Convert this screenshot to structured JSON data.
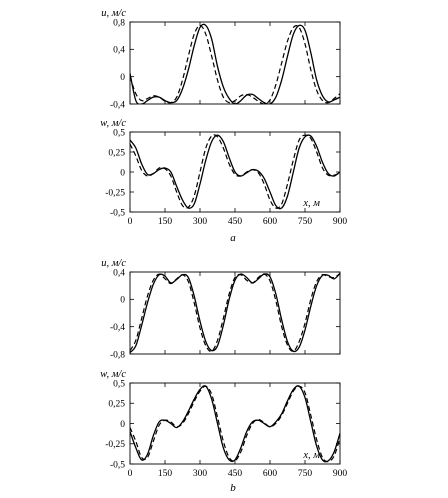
{
  "chart_data": [
    {
      "type": "line",
      "group": "a",
      "ylabel": "u, м/с",
      "xlabel": "",
      "xlim": [
        0,
        900
      ],
      "ylim": [
        -0.4,
        0.8
      ],
      "yticks": [
        "0,8",
        "0,4",
        "0",
        "-0,4"
      ],
      "ytick_values": [
        0.8,
        0.4,
        0,
        -0.4
      ],
      "xticks_shown": false,
      "series": [
        {
          "style": "solid",
          "x": [
            0,
            25,
            50,
            75,
            100,
            125,
            150,
            175,
            200,
            225,
            250,
            275,
            300,
            325,
            350,
            375,
            400,
            425,
            450,
            475,
            500,
            525,
            550,
            575,
            600,
            625,
            650,
            675,
            700,
            725,
            750,
            775,
            800,
            825,
            850,
            875,
            900
          ],
          "y": [
            0.05,
            -0.35,
            -0.4,
            -0.35,
            -0.3,
            -0.3,
            -0.35,
            -0.38,
            -0.35,
            -0.18,
            0.1,
            0.45,
            0.72,
            0.75,
            0.55,
            0.15,
            -0.15,
            -0.32,
            -0.4,
            -0.35,
            -0.27,
            -0.26,
            -0.32,
            -0.38,
            -0.4,
            -0.3,
            -0.05,
            0.3,
            0.62,
            0.75,
            0.68,
            0.35,
            -0.05,
            -0.28,
            -0.37,
            -0.34,
            -0.3
          ]
        },
        {
          "style": "dashed",
          "x": [
            0,
            25,
            50,
            75,
            100,
            125,
            150,
            175,
            200,
            225,
            250,
            275,
            300,
            325,
            350,
            375,
            400,
            425,
            450,
            475,
            500,
            525,
            550,
            575,
            600,
            625,
            650,
            675,
            700,
            725,
            750,
            775,
            800,
            825,
            850,
            875,
            900
          ],
          "y": [
            0.0,
            -0.25,
            -0.35,
            -0.32,
            -0.28,
            -0.3,
            -0.36,
            -0.38,
            -0.3,
            -0.05,
            0.3,
            0.62,
            0.75,
            0.62,
            0.3,
            -0.05,
            -0.3,
            -0.38,
            -0.35,
            -0.28,
            -0.26,
            -0.3,
            -0.36,
            -0.4,
            -0.34,
            -0.12,
            0.2,
            0.52,
            0.72,
            0.72,
            0.48,
            0.1,
            -0.2,
            -0.35,
            -0.38,
            -0.32,
            -0.25
          ]
        }
      ]
    },
    {
      "type": "line",
      "group": "a",
      "ylabel": "w, м/с",
      "xlabel": "x, м",
      "xlim": [
        0,
        900
      ],
      "ylim": [
        -0.5,
        0.5
      ],
      "yticks": [
        "0,5",
        "0,25",
        "0",
        "-0,25",
        "-0,5"
      ],
      "ytick_values": [
        0.5,
        0.25,
        0,
        -0.25,
        -0.5
      ],
      "xticks": [
        "0",
        "150",
        "300",
        "450",
        "600",
        "750",
        "900"
      ],
      "xtick_values": [
        0,
        150,
        300,
        450,
        600,
        750,
        900
      ],
      "series": [
        {
          "style": "solid",
          "x": [
            0,
            25,
            50,
            75,
            100,
            125,
            150,
            175,
            200,
            225,
            250,
            275,
            300,
            325,
            350,
            375,
            400,
            425,
            450,
            475,
            500,
            525,
            550,
            575,
            600,
            625,
            650,
            675,
            700,
            725,
            750,
            775,
            800,
            825,
            850,
            875,
            900
          ],
          "y": [
            0.4,
            0.3,
            0.1,
            -0.03,
            -0.02,
            0.03,
            0.05,
            0.0,
            -0.18,
            -0.35,
            -0.45,
            -0.4,
            -0.15,
            0.15,
            0.38,
            0.46,
            0.38,
            0.18,
            0.0,
            -0.05,
            -0.01,
            0.03,
            0.01,
            -0.08,
            -0.25,
            -0.42,
            -0.45,
            -0.3,
            0.0,
            0.3,
            0.44,
            0.45,
            0.32,
            0.12,
            -0.02,
            -0.05,
            0.0
          ]
        },
        {
          "style": "dashed",
          "x": [
            0,
            25,
            50,
            75,
            100,
            125,
            150,
            175,
            200,
            225,
            250,
            275,
            300,
            325,
            350,
            375,
            400,
            425,
            450,
            475,
            500,
            525,
            550,
            575,
            600,
            625,
            650,
            675,
            700,
            725,
            750,
            775,
            800,
            825,
            850,
            875,
            900
          ],
          "y": [
            0.35,
            0.2,
            0.02,
            -0.05,
            -0.02,
            0.05,
            0.04,
            -0.05,
            -0.25,
            -0.42,
            -0.44,
            -0.3,
            0.0,
            0.3,
            0.45,
            0.44,
            0.3,
            0.1,
            -0.03,
            -0.05,
            0.0,
            0.03,
            -0.01,
            -0.15,
            -0.35,
            -0.45,
            -0.4,
            -0.15,
            0.15,
            0.4,
            0.46,
            0.42,
            0.25,
            0.05,
            -0.04,
            -0.04,
            -0.01
          ]
        }
      ]
    },
    {
      "type": "line",
      "group": "b",
      "ylabel": "u, м/с",
      "xlabel": "",
      "xlim": [
        0,
        900
      ],
      "ylim": [
        -0.8,
        0.4
      ],
      "yticks": [
        "0,4",
        "0",
        "-0,4",
        "-0,8"
      ],
      "ytick_values": [
        0.4,
        0,
        -0.4,
        -0.8
      ],
      "xticks_shown": false,
      "series": [
        {
          "style": "solid",
          "x": [
            0,
            25,
            50,
            75,
            100,
            125,
            150,
            175,
            200,
            225,
            250,
            275,
            300,
            325,
            350,
            375,
            400,
            425,
            450,
            475,
            500,
            525,
            550,
            575,
            600,
            625,
            650,
            675,
            700,
            725,
            750,
            775,
            800,
            825,
            850,
            875,
            900
          ],
          "y": [
            -0.78,
            -0.68,
            -0.38,
            -0.05,
            0.22,
            0.36,
            0.34,
            0.24,
            0.29,
            0.36,
            0.32,
            0.05,
            -0.32,
            -0.62,
            -0.75,
            -0.68,
            -0.38,
            0.0,
            0.28,
            0.37,
            0.32,
            0.24,
            0.3,
            0.37,
            0.33,
            0.08,
            -0.3,
            -0.62,
            -0.76,
            -0.7,
            -0.45,
            -0.1,
            0.2,
            0.35,
            0.35,
            0.3,
            0.38
          ]
        },
        {
          "style": "dashed",
          "x": [
            0,
            25,
            50,
            75,
            100,
            125,
            150,
            175,
            200,
            225,
            250,
            275,
            300,
            325,
            350,
            375,
            400,
            425,
            450,
            475,
            500,
            525,
            550,
            575,
            600,
            625,
            650,
            675,
            700,
            725,
            750,
            775,
            800,
            825,
            850,
            875,
            900
          ],
          "y": [
            -0.75,
            -0.6,
            -0.28,
            0.05,
            0.28,
            0.37,
            0.3,
            0.23,
            0.3,
            0.36,
            0.26,
            -0.05,
            -0.42,
            -0.68,
            -0.76,
            -0.6,
            -0.28,
            0.08,
            0.32,
            0.36,
            0.28,
            0.24,
            0.32,
            0.37,
            0.27,
            -0.02,
            -0.4,
            -0.67,
            -0.76,
            -0.62,
            -0.35,
            0.0,
            0.26,
            0.36,
            0.33,
            0.32,
            0.38
          ]
        }
      ]
    },
    {
      "type": "line",
      "group": "b",
      "ylabel": "w, м/с",
      "xlabel": "x, м",
      "xlim": [
        0,
        900
      ],
      "ylim": [
        -0.5,
        0.5
      ],
      "yticks": [
        "0,5",
        "0,25",
        "0",
        "-0,25",
        "-0,5"
      ],
      "ytick_values": [
        0.5,
        0.25,
        0,
        -0.25,
        -0.5
      ],
      "xticks": [
        "0",
        "150",
        "300",
        "450",
        "600",
        "750",
        "900"
      ],
      "xtick_values": [
        0,
        150,
        300,
        450,
        600,
        750,
        900
      ],
      "series": [
        {
          "style": "solid",
          "x": [
            0,
            25,
            50,
            75,
            100,
            125,
            150,
            175,
            200,
            225,
            250,
            275,
            300,
            325,
            350,
            375,
            400,
            425,
            450,
            475,
            500,
            525,
            550,
            575,
            600,
            625,
            650,
            675,
            700,
            725,
            750,
            775,
            800,
            825,
            850,
            875,
            900
          ],
          "y": [
            -0.1,
            -0.3,
            -0.45,
            -0.38,
            -0.15,
            0.02,
            0.04,
            0.0,
            -0.05,
            0.02,
            0.15,
            0.3,
            0.42,
            0.46,
            0.3,
            0.0,
            -0.3,
            -0.45,
            -0.45,
            -0.3,
            -0.1,
            0.02,
            0.04,
            0.0,
            -0.04,
            0.02,
            0.12,
            0.28,
            0.42,
            0.46,
            0.32,
            0.02,
            -0.28,
            -0.45,
            -0.46,
            -0.35,
            -0.12
          ]
        },
        {
          "style": "dashed",
          "x": [
            0,
            25,
            50,
            75,
            100,
            125,
            150,
            175,
            200,
            225,
            250,
            275,
            300,
            325,
            350,
            375,
            400,
            425,
            450,
            475,
            500,
            525,
            550,
            575,
            600,
            625,
            650,
            675,
            700,
            725,
            750,
            775,
            800,
            825,
            850,
            875,
            900
          ],
          "y": [
            -0.05,
            -0.22,
            -0.42,
            -0.42,
            -0.22,
            -0.02,
            0.04,
            0.02,
            -0.04,
            0.0,
            0.12,
            0.27,
            0.4,
            0.46,
            0.36,
            0.08,
            -0.22,
            -0.42,
            -0.46,
            -0.35,
            -0.15,
            0.0,
            0.05,
            0.01,
            -0.04,
            0.0,
            0.1,
            0.25,
            0.4,
            0.46,
            0.38,
            0.1,
            -0.2,
            -0.42,
            -0.47,
            -0.4,
            -0.18
          ]
        }
      ]
    }
  ],
  "captions": {
    "a": "a",
    "b": "b"
  }
}
